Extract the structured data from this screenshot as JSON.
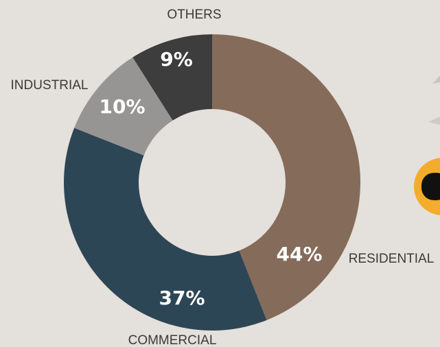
{
  "chart_data": {
    "type": "donut",
    "categories": [
      "RESIDENTIAL",
      "COMMERCIAL",
      "INDUSTRIAL",
      "OTHERS"
    ],
    "values": [
      44,
      37,
      10,
      9
    ],
    "value_labels": [
      "44%",
      "37%",
      "10%",
      "9%"
    ],
    "colors": [
      "#856b5a",
      "#2d4656",
      "#979594",
      "#3d3d3d"
    ]
  }
}
